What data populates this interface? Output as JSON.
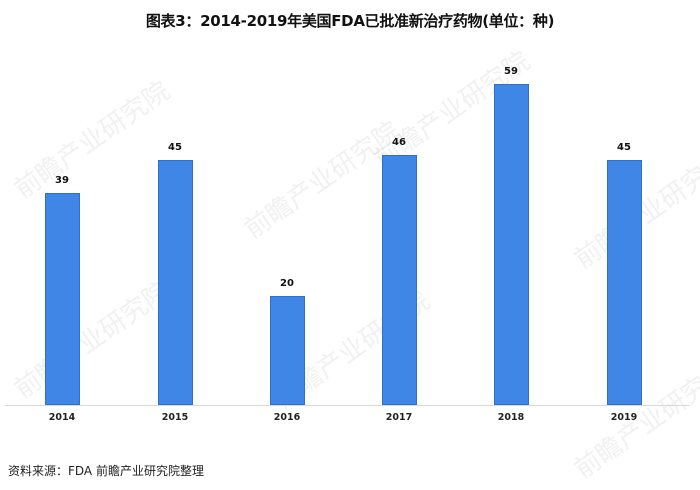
{
  "title": "图表3：2014-2019年美国FDA已批准新治疗药物(单位：种)",
  "source": "资料来源：FDA 前瞻产业研究院整理",
  "watermark": "前瞻产业研究院",
  "colors": {
    "bar": "#3f86e6",
    "bar_border": "#2e6fcf",
    "axis": "#d9d9d9"
  },
  "chart_data": {
    "type": "bar",
    "title": "图表3：2014-2019年美国FDA已批准新治疗药物(单位：种)",
    "categories": [
      "2014",
      "2015",
      "2016",
      "2017",
      "2018",
      "2019"
    ],
    "values": [
      39,
      45,
      20,
      46,
      59,
      45
    ],
    "xlabel": "",
    "ylabel": "",
    "unit": "种",
    "ylim": [
      0,
      60
    ],
    "grid": false,
    "legend": null,
    "data_labels": true
  }
}
